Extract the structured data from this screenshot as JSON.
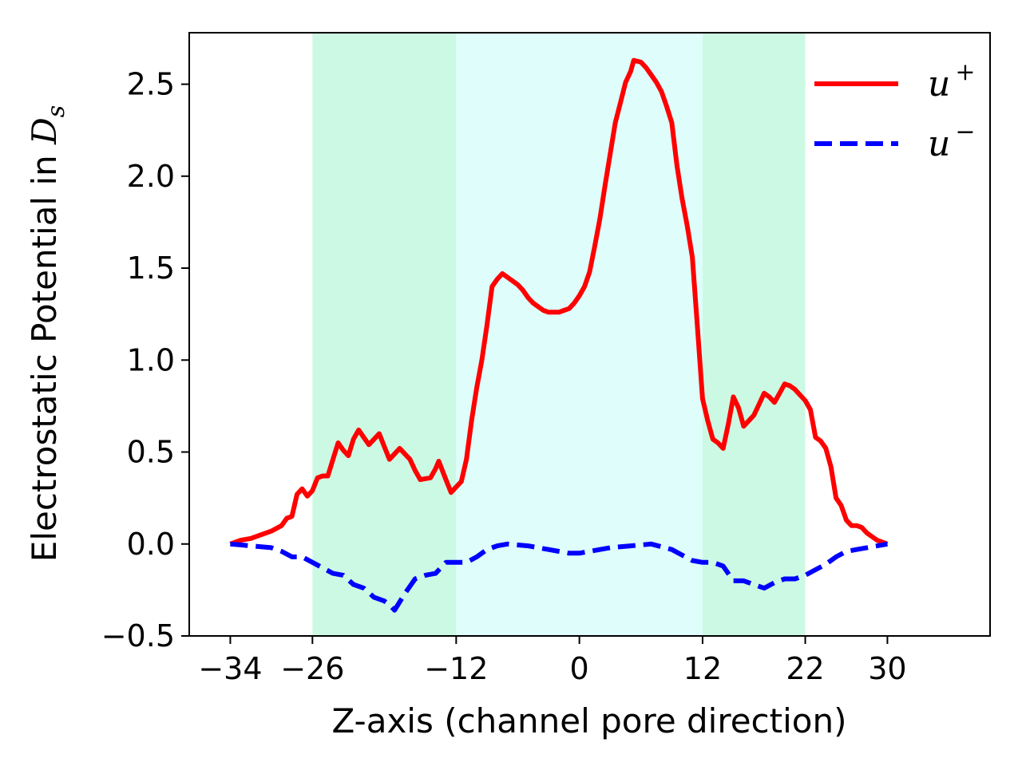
{
  "chart_data": {
    "type": "line",
    "xlabel": "Z-axis (channel pore direction)",
    "ylabel_prefix": "Electrostatic Potential in ",
    "ylabel_symbol": "D",
    "ylabel_subscript": "s",
    "xlim": [
      -38,
      40
    ],
    "ylim": [
      -0.5,
      2.78
    ],
    "xticks": [
      -34,
      -26,
      -12,
      0,
      12,
      22,
      30
    ],
    "xtick_labels": [
      "−34",
      "−26",
      "−12",
      "0",
      "12",
      "22",
      "30"
    ],
    "yticks": [
      -0.5,
      0.0,
      0.5,
      1.0,
      1.5,
      2.0,
      2.5
    ],
    "ytick_labels": [
      "−0.5",
      "0.0",
      "0.5",
      "1.0",
      "1.5",
      "2.0",
      "2.5"
    ],
    "shaded_regions": [
      {
        "x_from": -26,
        "x_to": -12,
        "color": "#ccf9e3"
      },
      {
        "x_from": -12,
        "x_to": 12,
        "color": "#defdfb"
      },
      {
        "x_from": 12,
        "x_to": 22,
        "color": "#ccf9e3"
      }
    ],
    "legend_position": "upper-right",
    "series": [
      {
        "name": "u",
        "superscript": "+",
        "color": "#ff0000",
        "style": "solid",
        "points": [
          [
            -34,
            0.0
          ],
          [
            -33,
            0.02
          ],
          [
            -32,
            0.03
          ],
          [
            -31,
            0.05
          ],
          [
            -30,
            0.07
          ],
          [
            -29,
            0.1
          ],
          [
            -28.5,
            0.14
          ],
          [
            -28,
            0.15
          ],
          [
            -27.5,
            0.27
          ],
          [
            -27,
            0.3
          ],
          [
            -26.5,
            0.26
          ],
          [
            -26,
            0.29
          ],
          [
            -25.5,
            0.36
          ],
          [
            -25,
            0.37
          ],
          [
            -24.5,
            0.37
          ],
          [
            -24,
            0.46
          ],
          [
            -23.5,
            0.55
          ],
          [
            -23,
            0.51
          ],
          [
            -22.5,
            0.48
          ],
          [
            -22,
            0.57
          ],
          [
            -21.5,
            0.62
          ],
          [
            -21,
            0.58
          ],
          [
            -20.5,
            0.54
          ],
          [
            -20,
            0.57
          ],
          [
            -19.5,
            0.6
          ],
          [
            -19,
            0.53
          ],
          [
            -18.5,
            0.46
          ],
          [
            -18,
            0.49
          ],
          [
            -17.5,
            0.52
          ],
          [
            -17,
            0.49
          ],
          [
            -16.5,
            0.46
          ],
          [
            -16,
            0.4
          ],
          [
            -15.5,
            0.35
          ],
          [
            -14.5,
            0.36
          ],
          [
            -14,
            0.41
          ],
          [
            -13.7,
            0.45
          ],
          [
            -13,
            0.35
          ],
          [
            -12.5,
            0.28
          ],
          [
            -12,
            0.31
          ],
          [
            -11.5,
            0.34
          ],
          [
            -11,
            0.46
          ],
          [
            -10.5,
            0.67
          ],
          [
            -10,
            0.85
          ],
          [
            -9.5,
            1.0
          ],
          [
            -9,
            1.19
          ],
          [
            -8.5,
            1.4
          ],
          [
            -8,
            1.44
          ],
          [
            -7.5,
            1.47
          ],
          [
            -7,
            1.45
          ],
          [
            -6.5,
            1.43
          ],
          [
            -6,
            1.41
          ],
          [
            -5.5,
            1.38
          ],
          [
            -5,
            1.34
          ],
          [
            -4.5,
            1.31
          ],
          [
            -4,
            1.29
          ],
          [
            -3.5,
            1.27
          ],
          [
            -3,
            1.26
          ],
          [
            -2.5,
            1.26
          ],
          [
            -2,
            1.26
          ],
          [
            -1.5,
            1.27
          ],
          [
            -1,
            1.28
          ],
          [
            -0.5,
            1.31
          ],
          [
            0,
            1.35
          ],
          [
            0.5,
            1.4
          ],
          [
            1,
            1.48
          ],
          [
            1.5,
            1.62
          ],
          [
            2,
            1.77
          ],
          [
            2.5,
            1.95
          ],
          [
            3,
            2.12
          ],
          [
            3.5,
            2.29
          ],
          [
            4,
            2.4
          ],
          [
            4.5,
            2.51
          ],
          [
            5,
            2.57
          ],
          [
            5.3,
            2.63
          ],
          [
            6,
            2.62
          ],
          [
            6.5,
            2.59
          ],
          [
            7,
            2.55
          ],
          [
            7.5,
            2.51
          ],
          [
            8,
            2.46
          ],
          [
            8.5,
            2.38
          ],
          [
            9,
            2.29
          ],
          [
            9.5,
            2.06
          ],
          [
            10,
            1.88
          ],
          [
            10.5,
            1.73
          ],
          [
            11,
            1.56
          ],
          [
            11.5,
            1.18
          ],
          [
            12,
            0.79
          ],
          [
            12.5,
            0.67
          ],
          [
            13,
            0.57
          ],
          [
            13.5,
            0.55
          ],
          [
            14,
            0.52
          ],
          [
            14.5,
            0.65
          ],
          [
            15,
            0.8
          ],
          [
            15.5,
            0.74
          ],
          [
            16,
            0.64
          ],
          [
            16.5,
            0.67
          ],
          [
            17,
            0.7
          ],
          [
            17.5,
            0.76
          ],
          [
            18,
            0.82
          ],
          [
            18.5,
            0.8
          ],
          [
            19,
            0.77
          ],
          [
            19.5,
            0.82
          ],
          [
            20,
            0.87
          ],
          [
            20.5,
            0.86
          ],
          [
            21,
            0.84
          ],
          [
            21.5,
            0.81
          ],
          [
            22,
            0.78
          ],
          [
            22.5,
            0.73
          ],
          [
            23,
            0.58
          ],
          [
            23.5,
            0.56
          ],
          [
            24,
            0.52
          ],
          [
            24.5,
            0.42
          ],
          [
            25,
            0.25
          ],
          [
            25.5,
            0.21
          ],
          [
            26,
            0.13
          ],
          [
            26.5,
            0.1
          ],
          [
            27,
            0.1
          ],
          [
            27.5,
            0.09
          ],
          [
            28,
            0.06
          ],
          [
            28.5,
            0.04
          ],
          [
            29,
            0.02
          ],
          [
            30,
            0.0
          ]
        ]
      },
      {
        "name": "u",
        "superscript": "−",
        "color": "#0000ff",
        "style": "dashed",
        "points": [
          [
            -34,
            0.0
          ],
          [
            -33,
            -0.005
          ],
          [
            -32,
            -0.01
          ],
          [
            -31,
            -0.015
          ],
          [
            -30,
            -0.02
          ],
          [
            -29,
            -0.04
          ],
          [
            -28,
            -0.07
          ],
          [
            -27,
            -0.07
          ],
          [
            -26,
            -0.1
          ],
          [
            -25,
            -0.13
          ],
          [
            -24,
            -0.16
          ],
          [
            -23,
            -0.17
          ],
          [
            -22,
            -0.22
          ],
          [
            -21,
            -0.24
          ],
          [
            -20,
            -0.29
          ],
          [
            -19,
            -0.31
          ],
          [
            -18.5,
            -0.33
          ],
          [
            -18,
            -0.36
          ],
          [
            -17,
            -0.27
          ],
          [
            -16,
            -0.19
          ],
          [
            -15,
            -0.17
          ],
          [
            -14,
            -0.16
          ],
          [
            -13,
            -0.1
          ],
          [
            -12,
            -0.1
          ],
          [
            -11,
            -0.1
          ],
          [
            -10,
            -0.07
          ],
          [
            -9,
            -0.03
          ],
          [
            -8,
            -0.01
          ],
          [
            -7,
            0.0
          ],
          [
            -5,
            -0.01
          ],
          [
            -3,
            -0.03
          ],
          [
            -1,
            -0.05
          ],
          [
            0,
            -0.05
          ],
          [
            1,
            -0.04
          ],
          [
            2,
            -0.03
          ],
          [
            3,
            -0.02
          ],
          [
            5,
            -0.01
          ],
          [
            7,
            0.0
          ],
          [
            9,
            -0.03
          ],
          [
            10,
            -0.06
          ],
          [
            11,
            -0.09
          ],
          [
            12,
            -0.1
          ],
          [
            13,
            -0.1
          ],
          [
            14,
            -0.12
          ],
          [
            15,
            -0.2
          ],
          [
            16,
            -0.2
          ],
          [
            17,
            -0.22
          ],
          [
            18,
            -0.24
          ],
          [
            19,
            -0.21
          ],
          [
            20,
            -0.19
          ],
          [
            21,
            -0.19
          ],
          [
            22,
            -0.17
          ],
          [
            23,
            -0.14
          ],
          [
            24,
            -0.11
          ],
          [
            25,
            -0.07
          ],
          [
            26,
            -0.04
          ],
          [
            27,
            -0.03
          ],
          [
            28,
            -0.02
          ],
          [
            29,
            -0.01
          ],
          [
            30,
            0.0
          ]
        ]
      }
    ]
  }
}
